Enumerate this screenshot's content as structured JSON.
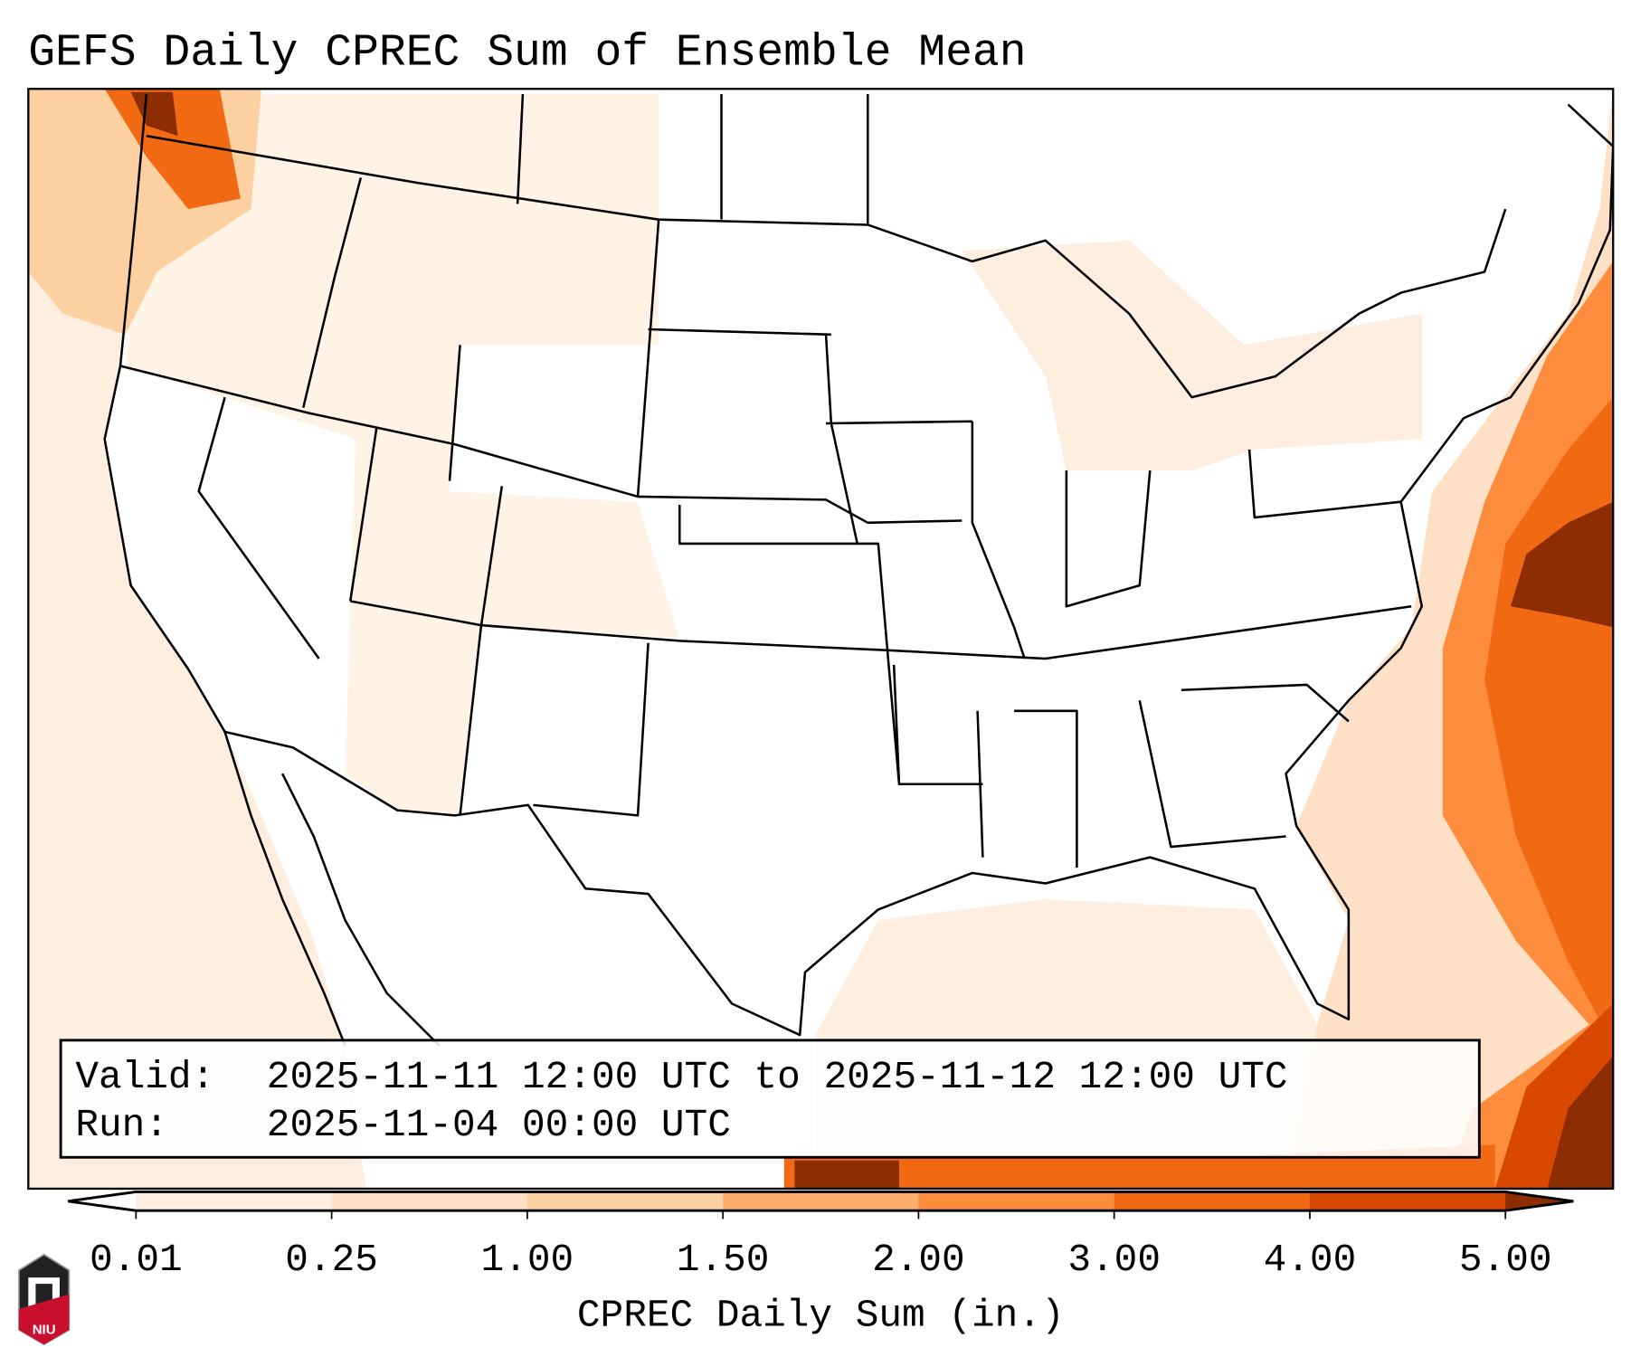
{
  "title": "GEFS Daily CPREC Sum of Ensemble Mean",
  "info_box": {
    "valid_label": "Valid:",
    "valid_value": "2025-11-11 12:00 UTC to 2025-11-12 12:00 UTC",
    "run_label": "Run:",
    "run_value": "2025-11-04 00:00 UTC"
  },
  "colorbar": {
    "label": "CPREC Daily Sum (in.)",
    "ticks": [
      "0.01",
      "0.25",
      "1.00",
      "1.50",
      "2.00",
      "3.00",
      "4.00",
      "5.00"
    ],
    "colors": [
      "#fdeee0",
      "#fde0c5",
      "#fdd0a2",
      "#fdae6b",
      "#fd8d3c",
      "#f16913",
      "#d94801",
      "#8c2d04"
    ],
    "under_color": "#ffffff",
    "over_color": "#8c2d04"
  },
  "logo": {
    "text": "NIU"
  },
  "chart_data": {
    "type": "heatmap",
    "title": "GEFS Daily CPREC Sum of Ensemble Mean",
    "variable": "CPREC Daily Sum (in.)",
    "levels": [
      0.01,
      0.25,
      1.0,
      1.5,
      2.0,
      3.0,
      4.0,
      5.0
    ],
    "extend": "both",
    "region": "CONUS"
  }
}
